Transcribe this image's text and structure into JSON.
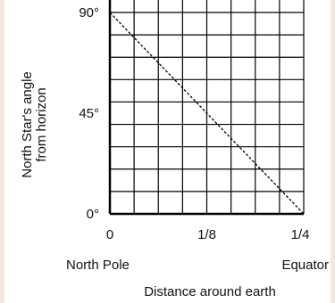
{
  "chart_data": {
    "type": "line",
    "x_tick_labels": [
      "0",
      "1/8",
      "1/4"
    ],
    "y_tick_labels": [
      "0°",
      "45°",
      "90°"
    ],
    "xlim": [
      0,
      0.25
    ],
    "ylim": [
      0,
      90
    ],
    "x_endpoint_labels": [
      "North Pole",
      "Equator"
    ],
    "xlabel": "Distance around earth",
    "ylabel": [
      "North Star's angle",
      "from horizon"
    ],
    "grid": true,
    "grid_divisions": {
      "x": 8,
      "y": 10
    },
    "series": [
      {
        "line_style": "dashed",
        "x": [
          0,
          0.25
        ],
        "y": [
          90,
          0
        ]
      }
    ]
  }
}
